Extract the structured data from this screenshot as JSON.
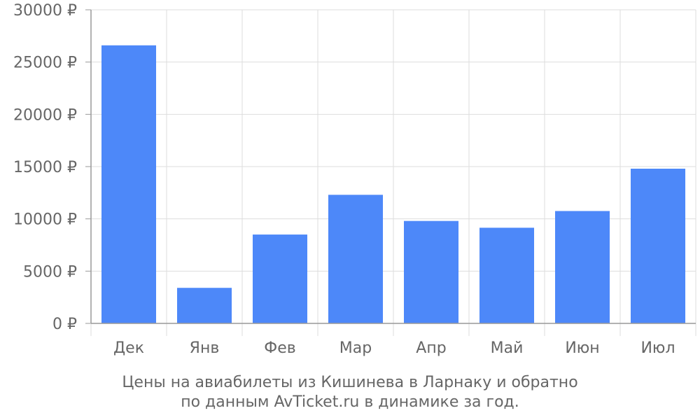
{
  "chart_data": {
    "type": "bar",
    "categories": [
      "Дек",
      "Янв",
      "Фев",
      "Мар",
      "Апр",
      "Май",
      "Июн",
      "Июл"
    ],
    "values": [
      26600,
      3400,
      8500,
      12300,
      9800,
      9150,
      10750,
      14800
    ],
    "y_tick_labels": [
      "0 ₽",
      "5000 ₽",
      "10000 ₽",
      "15000 ₽",
      "20000 ₽",
      "25000 ₽",
      "30000 ₽"
    ],
    "y_ticks": [
      0,
      5000,
      10000,
      15000,
      20000,
      25000,
      30000
    ],
    "ylim": [
      0,
      30000
    ],
    "title": "",
    "xlabel": "",
    "ylabel": "",
    "grid": true,
    "bar_color": "#4d88f9",
    "grid_color": "#dddddd",
    "axis_color": "#999999",
    "text_color": "#666666"
  },
  "caption": {
    "line1": "Цены на авиабилеты из Кишинева в Ларнаку и обратно",
    "line2": "по данным AvTicket.ru в динамике за год."
  }
}
